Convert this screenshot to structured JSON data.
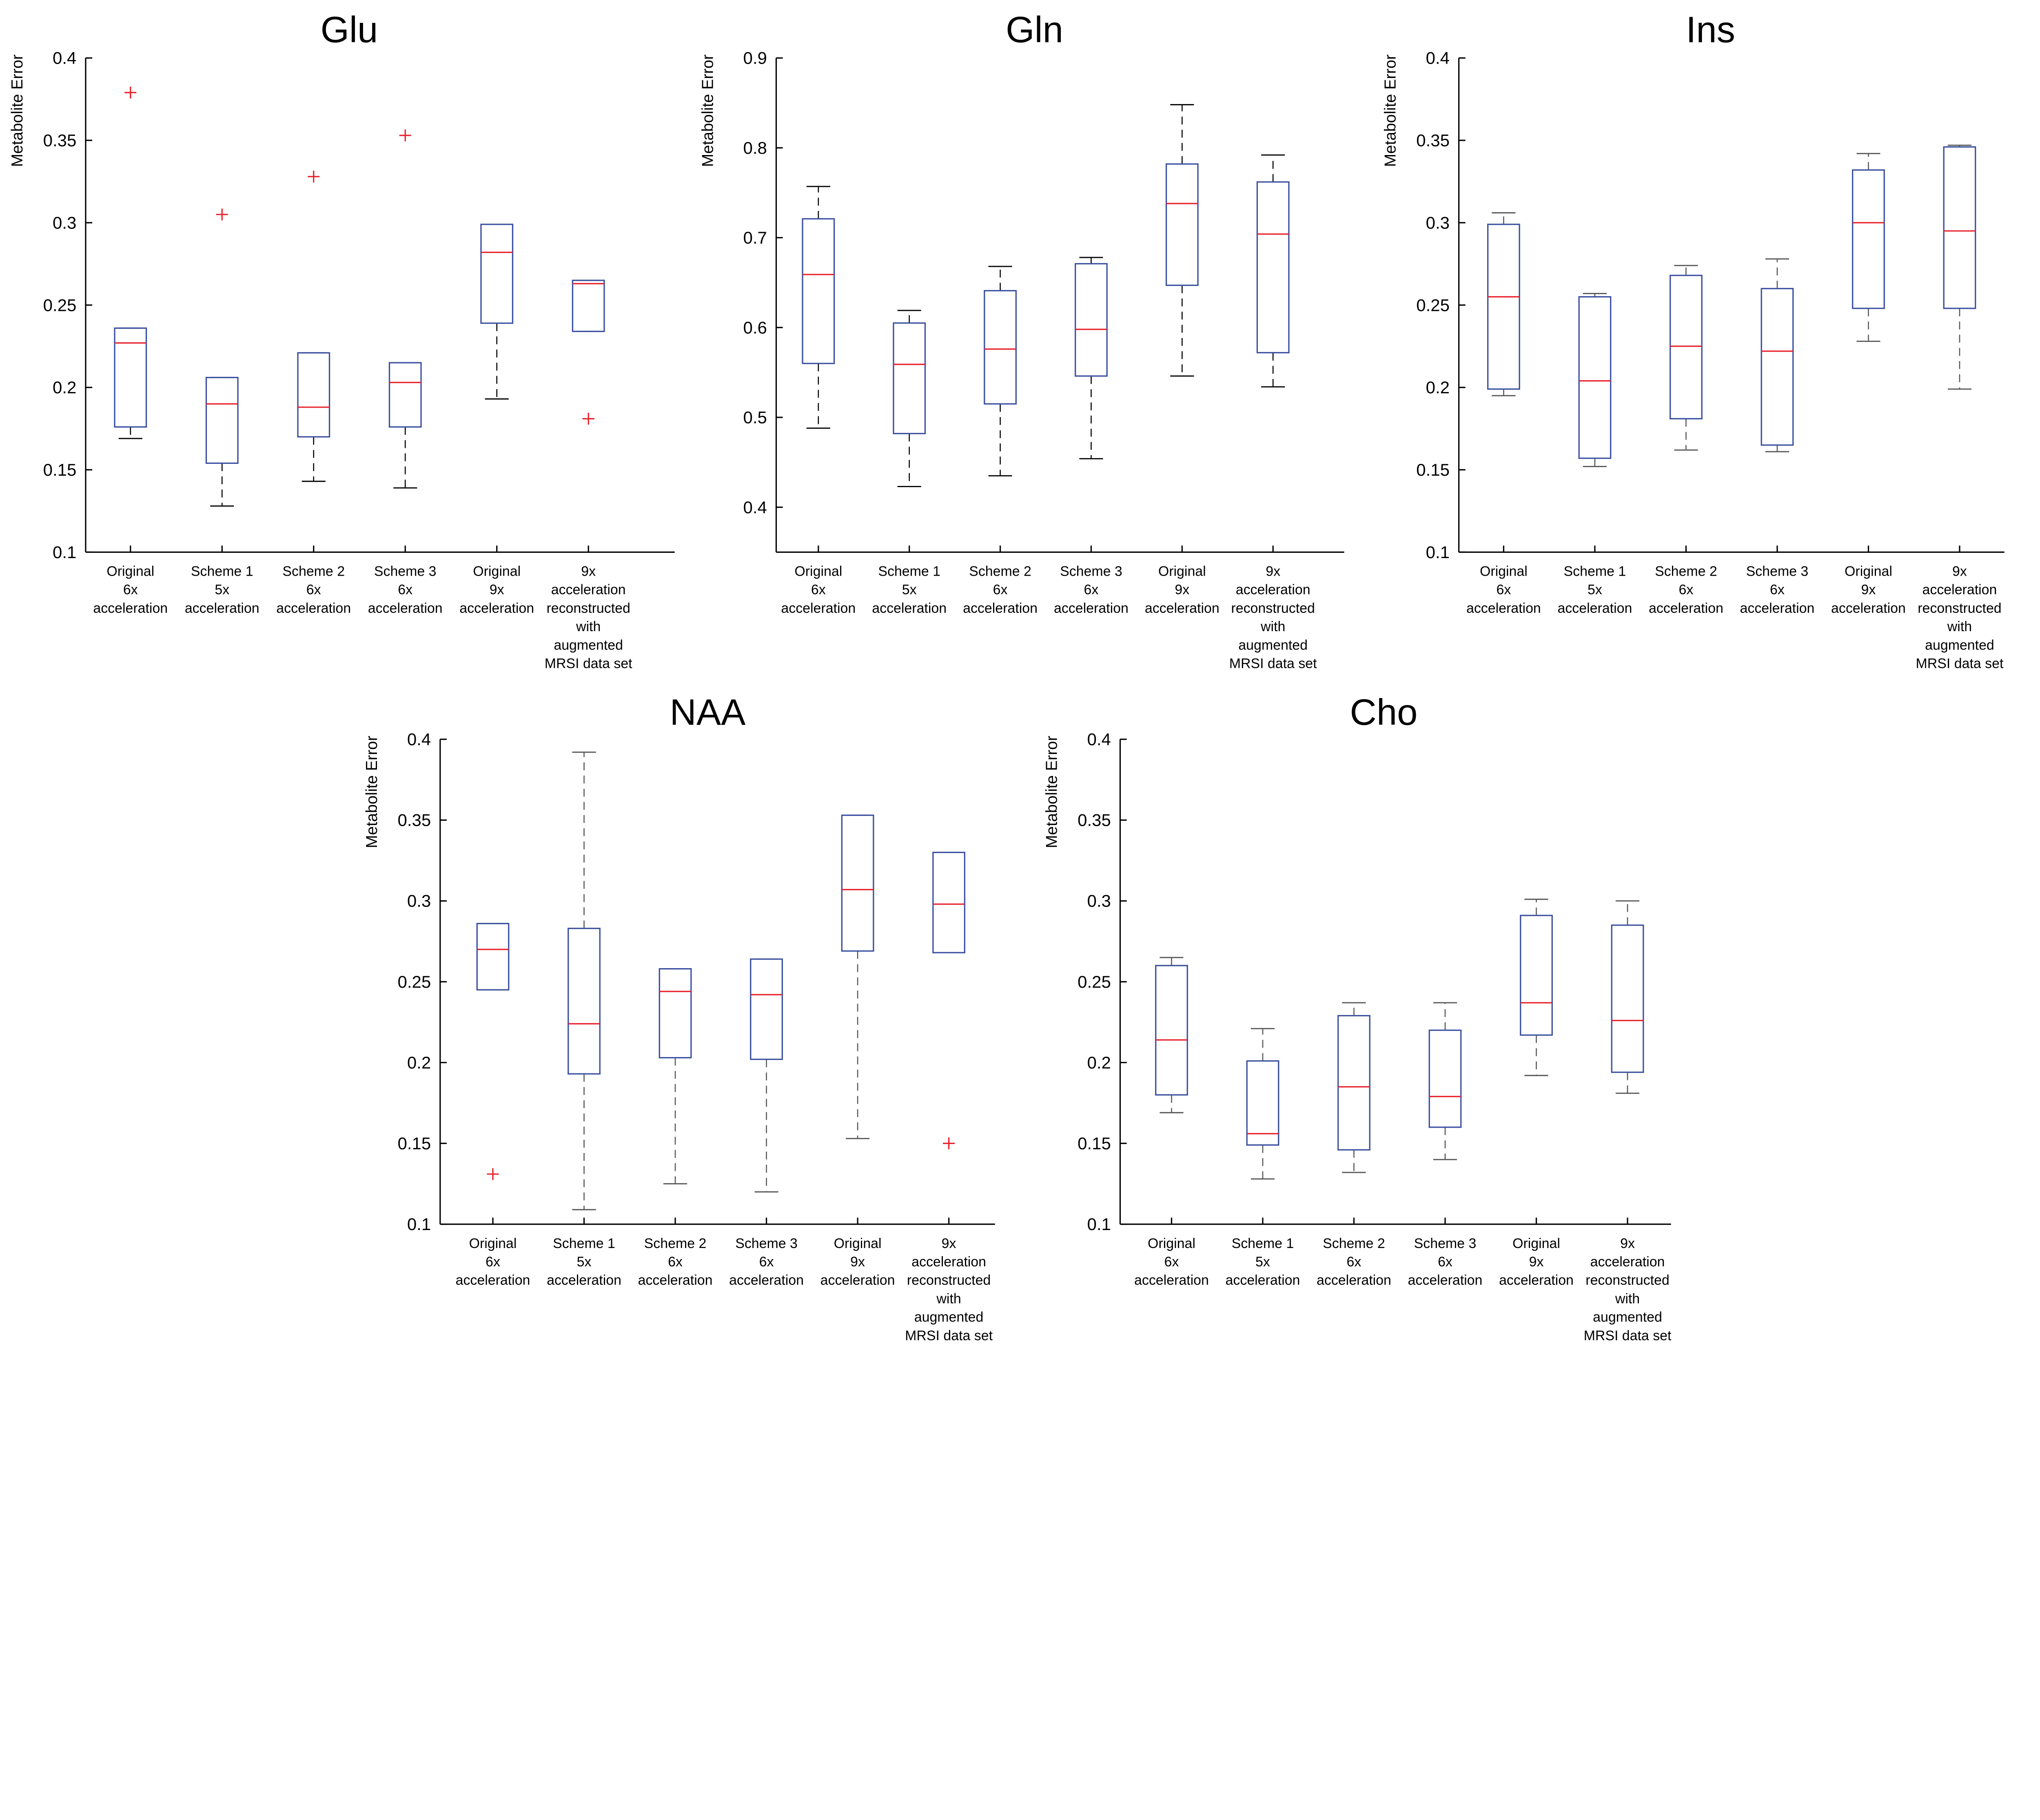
{
  "chart_data": [
    {
      "type": "box",
      "title": "Glu",
      "ylabel": "Metabolite Error",
      "ylim": [
        0.1,
        0.4
      ],
      "yticks": [
        "0.1",
        "0.15",
        "0.2",
        "0.25",
        "0.3",
        "0.35",
        "0.4"
      ],
      "categories": [
        [
          "Original",
          "6x",
          "acceleration"
        ],
        [
          "Scheme 1",
          "5x",
          "acceleration"
        ],
        [
          "Scheme 2",
          "6x",
          "acceleration"
        ],
        [
          "Scheme 3",
          "6x",
          "acceleration"
        ],
        [
          "Original",
          "9x",
          "acceleration"
        ],
        [
          "9x",
          "acceleration",
          "reconstructed",
          "with",
          "augmented",
          "MRSI data set"
        ]
      ],
      "whisker_color": "#000000",
      "boxes": [
        {
          "low": 0.169,
          "q1": 0.176,
          "median": 0.227,
          "q3": 0.236,
          "high": 0.236,
          "outliers": [
            0.379
          ]
        },
        {
          "low": 0.128,
          "q1": 0.154,
          "median": 0.19,
          "q3": 0.206,
          "high": 0.206,
          "outliers": [
            0.305
          ]
        },
        {
          "low": 0.143,
          "q1": 0.17,
          "median": 0.188,
          "q3": 0.221,
          "high": 0.221,
          "outliers": [
            0.328
          ]
        },
        {
          "low": 0.139,
          "q1": 0.176,
          "median": 0.203,
          "q3": 0.215,
          "high": 0.215,
          "outliers": [
            0.353
          ]
        },
        {
          "low": 0.193,
          "q1": 0.239,
          "median": 0.282,
          "q3": 0.299,
          "high": 0.299,
          "outliers": []
        },
        {
          "low": 0.234,
          "q1": 0.234,
          "median": 0.263,
          "q3": 0.265,
          "high": 0.265,
          "outliers": [
            0.181
          ]
        }
      ]
    },
    {
      "type": "box",
      "title": "Gln",
      "ylabel": "Metabolite Error",
      "ylim": [
        0.35,
        0.9
      ],
      "yticks": [
        "0.4",
        "0.5",
        "0.6",
        "0.7",
        "0.8",
        "0.9"
      ],
      "categories": [
        [
          "Original",
          "6x",
          "acceleration"
        ],
        [
          "Scheme 1",
          "5x",
          "acceleration"
        ],
        [
          "Scheme 2",
          "6x",
          "acceleration"
        ],
        [
          "Scheme 3",
          "6x",
          "acceleration"
        ],
        [
          "Original",
          "9x",
          "acceleration"
        ],
        [
          "9x",
          "acceleration",
          "reconstructed",
          "with",
          "augmented",
          "MRSI data set"
        ]
      ],
      "whisker_color": "#000000",
      "boxes": [
        {
          "low": 0.488,
          "q1": 0.56,
          "median": 0.659,
          "q3": 0.721,
          "high": 0.757,
          "outliers": []
        },
        {
          "low": 0.423,
          "q1": 0.482,
          "median": 0.559,
          "q3": 0.605,
          "high": 0.619,
          "outliers": []
        },
        {
          "low": 0.435,
          "q1": 0.515,
          "median": 0.576,
          "q3": 0.641,
          "high": 0.668,
          "outliers": []
        },
        {
          "low": 0.454,
          "q1": 0.546,
          "median": 0.598,
          "q3": 0.671,
          "high": 0.678,
          "outliers": []
        },
        {
          "low": 0.546,
          "q1": 0.647,
          "median": 0.738,
          "q3": 0.782,
          "high": 0.848,
          "outliers": []
        },
        {
          "low": 0.534,
          "q1": 0.572,
          "median": 0.704,
          "q3": 0.762,
          "high": 0.792,
          "outliers": []
        }
      ]
    },
    {
      "type": "box",
      "title": "Ins",
      "ylabel": "Metabolite Error",
      "ylim": [
        0.1,
        0.4
      ],
      "yticks": [
        "0.1",
        "0.15",
        "0.2",
        "0.25",
        "0.3",
        "0.35",
        "0.4"
      ],
      "categories": [
        [
          "Original",
          "6x",
          "acceleration"
        ],
        [
          "Scheme 1",
          "5x",
          "acceleration"
        ],
        [
          "Scheme 2",
          "6x",
          "acceleration"
        ],
        [
          "Scheme 3",
          "6x",
          "acceleration"
        ],
        [
          "Original",
          "9x",
          "acceleration"
        ],
        [
          "9x",
          "acceleration",
          "reconstructed",
          "with",
          "augmented",
          "MRSI data set"
        ]
      ],
      "whisker_color": "#555555",
      "boxes": [
        {
          "low": 0.195,
          "q1": 0.199,
          "median": 0.255,
          "q3": 0.299,
          "high": 0.306,
          "outliers": []
        },
        {
          "low": 0.152,
          "q1": 0.157,
          "median": 0.204,
          "q3": 0.255,
          "high": 0.257,
          "outliers": []
        },
        {
          "low": 0.162,
          "q1": 0.181,
          "median": 0.225,
          "q3": 0.268,
          "high": 0.274,
          "outliers": []
        },
        {
          "low": 0.161,
          "q1": 0.165,
          "median": 0.222,
          "q3": 0.26,
          "high": 0.278,
          "outliers": []
        },
        {
          "low": 0.228,
          "q1": 0.248,
          "median": 0.3,
          "q3": 0.332,
          "high": 0.342,
          "outliers": []
        },
        {
          "low": 0.199,
          "q1": 0.248,
          "median": 0.295,
          "q3": 0.346,
          "high": 0.347,
          "outliers": []
        }
      ]
    },
    {
      "type": "box",
      "title": "NAA",
      "ylabel": "Metabolite Error",
      "ylim": [
        0.1,
        0.4
      ],
      "yticks": [
        "0.1",
        "0.15",
        "0.2",
        "0.25",
        "0.3",
        "0.35",
        "0.4"
      ],
      "categories": [
        [
          "Original",
          "6x",
          "acceleration"
        ],
        [
          "Scheme 1",
          "5x",
          "acceleration"
        ],
        [
          "Scheme 2",
          "6x",
          "acceleration"
        ],
        [
          "Scheme 3",
          "6x",
          "acceleration"
        ],
        [
          "Original",
          "9x",
          "acceleration"
        ],
        [
          "9x",
          "acceleration",
          "reconstructed",
          "with",
          "augmented",
          "MRSI data set"
        ]
      ],
      "whisker_color": "#555555",
      "boxes": [
        {
          "low": 0.245,
          "q1": 0.245,
          "median": 0.27,
          "q3": 0.286,
          "high": 0.286,
          "outliers": [
            0.131
          ]
        },
        {
          "low": 0.109,
          "q1": 0.193,
          "median": 0.224,
          "q3": 0.283,
          "high": 0.392,
          "outliers": []
        },
        {
          "low": 0.125,
          "q1": 0.203,
          "median": 0.244,
          "q3": 0.258,
          "high": 0.258,
          "outliers": []
        },
        {
          "low": 0.12,
          "q1": 0.202,
          "median": 0.242,
          "q3": 0.264,
          "high": 0.264,
          "outliers": []
        },
        {
          "low": 0.153,
          "q1": 0.269,
          "median": 0.307,
          "q3": 0.353,
          "high": 0.353,
          "outliers": []
        },
        {
          "low": 0.268,
          "q1": 0.268,
          "median": 0.298,
          "q3": 0.33,
          "high": 0.33,
          "outliers": [
            0.15
          ]
        }
      ]
    },
    {
      "type": "box",
      "title": "Cho",
      "ylabel": "Metabolite Error",
      "ylim": [
        0.1,
        0.4
      ],
      "yticks": [
        "0.1",
        "0.15",
        "0.2",
        "0.25",
        "0.3",
        "0.35",
        "0.4"
      ],
      "categories": [
        [
          "Original",
          "6x",
          "acceleration"
        ],
        [
          "Scheme 1",
          "5x",
          "acceleration"
        ],
        [
          "Scheme 2",
          "6x",
          "acceleration"
        ],
        [
          "Scheme 3",
          "6x",
          "acceleration"
        ],
        [
          "Original",
          "9x",
          "acceleration"
        ],
        [
          "9x",
          "acceleration",
          "reconstructed",
          "with",
          "augmented",
          "MRSI data set"
        ]
      ],
      "whisker_color": "#555555",
      "boxes": [
        {
          "low": 0.169,
          "q1": 0.18,
          "median": 0.214,
          "q3": 0.26,
          "high": 0.265,
          "outliers": []
        },
        {
          "low": 0.128,
          "q1": 0.149,
          "median": 0.156,
          "q3": 0.201,
          "high": 0.221,
          "outliers": []
        },
        {
          "low": 0.132,
          "q1": 0.146,
          "median": 0.185,
          "q3": 0.229,
          "high": 0.237,
          "outliers": []
        },
        {
          "low": 0.14,
          "q1": 0.16,
          "median": 0.179,
          "q3": 0.22,
          "high": 0.237,
          "outliers": []
        },
        {
          "low": 0.192,
          "q1": 0.217,
          "median": 0.237,
          "q3": 0.291,
          "high": 0.301,
          "outliers": []
        },
        {
          "low": 0.181,
          "q1": 0.194,
          "median": 0.226,
          "q3": 0.285,
          "high": 0.3,
          "outliers": []
        }
      ]
    }
  ],
  "colors": {
    "box": "#3a4fa0",
    "median": "#e8202a",
    "outlier": "#e8202a",
    "axis": "#000000"
  }
}
